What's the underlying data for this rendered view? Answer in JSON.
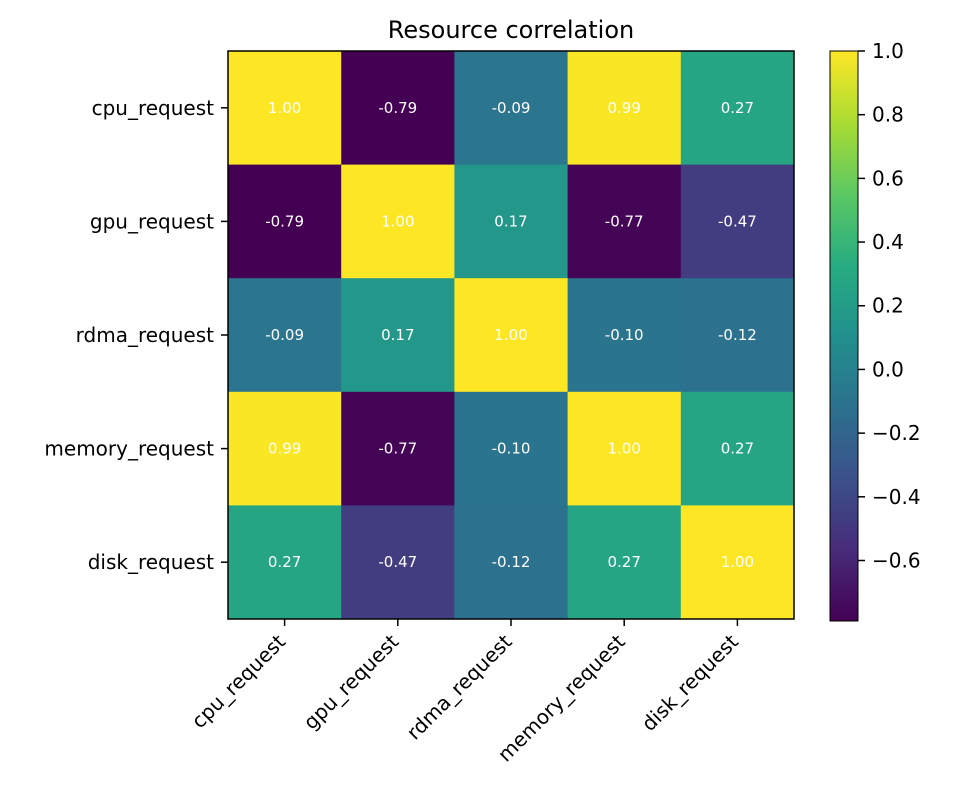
{
  "chart_data": {
    "type": "heatmap",
    "title": "Resource correlation",
    "rows": [
      "cpu_request",
      "gpu_request",
      "rdma_request",
      "memory_request",
      "disk_request"
    ],
    "cols": [
      "cpu_request",
      "gpu_request",
      "rdma_request",
      "memory_request",
      "disk_request"
    ],
    "values": [
      [
        1.0,
        -0.79,
        -0.09,
        0.99,
        0.27
      ],
      [
        -0.79,
        1.0,
        0.17,
        -0.77,
        -0.47
      ],
      [
        -0.09,
        0.17,
        1.0,
        -0.1,
        -0.12
      ],
      [
        0.99,
        -0.77,
        -0.1,
        1.0,
        0.27
      ],
      [
        0.27,
        -0.47,
        -0.12,
        0.27,
        1.0
      ]
    ],
    "colormap": "viridis",
    "vmin": -0.79,
    "vmax": 1.0,
    "colorbar_ticks": [
      1.0,
      0.8,
      0.6,
      0.4,
      0.2,
      0.0,
      -0.2,
      -0.4,
      -0.6
    ],
    "colorbar_tick_labels": [
      "1.0",
      "0.8",
      "0.6",
      "0.4",
      "0.2",
      "0.0",
      "−0.2",
      "−0.4",
      "−0.6"
    ]
  }
}
